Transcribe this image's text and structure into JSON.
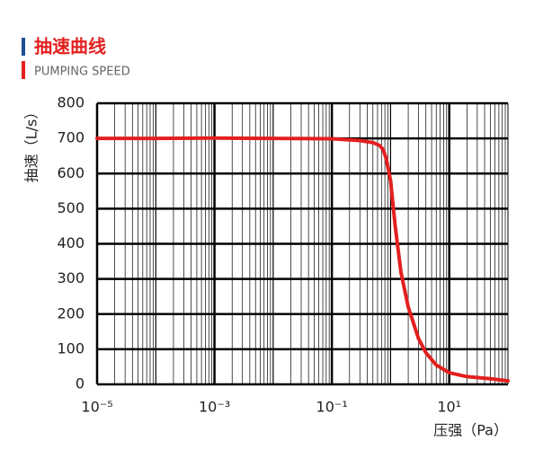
{
  "title": "抽速曲线",
  "subtitle": "PUMPING SPEED",
  "chart_data": {
    "type": "line",
    "xlabel": "压强（Pa）",
    "ylabel": "抽速（L/s）",
    "xscale": "log",
    "grid": true,
    "xlim": [
      1e-05,
      100
    ],
    "ylim": [
      0,
      800
    ],
    "xticks": [
      {
        "value": 1e-05,
        "label": "10⁻⁵"
      },
      {
        "value": 0.001,
        "label": "10⁻³"
      },
      {
        "value": 0.1,
        "label": "10⁻¹"
      },
      {
        "value": 10,
        "label": "10¹"
      }
    ],
    "yticks": [
      0,
      100,
      200,
      300,
      400,
      500,
      600,
      700,
      800
    ],
    "series": [
      {
        "color": "#e3201f",
        "x": [
          1e-05,
          0.0001,
          0.001,
          0.01,
          0.1,
          0.3,
          0.5,
          0.65,
          0.75,
          0.85,
          1.0,
          1.2,
          1.5,
          2,
          3,
          4,
          6,
          10,
          20,
          50,
          100
        ],
        "values": [
          700,
          700,
          701,
          700,
          699,
          694,
          688,
          680,
          668,
          640,
          580,
          450,
          320,
          220,
          130,
          90,
          55,
          33,
          22,
          16,
          10
        ]
      }
    ]
  }
}
